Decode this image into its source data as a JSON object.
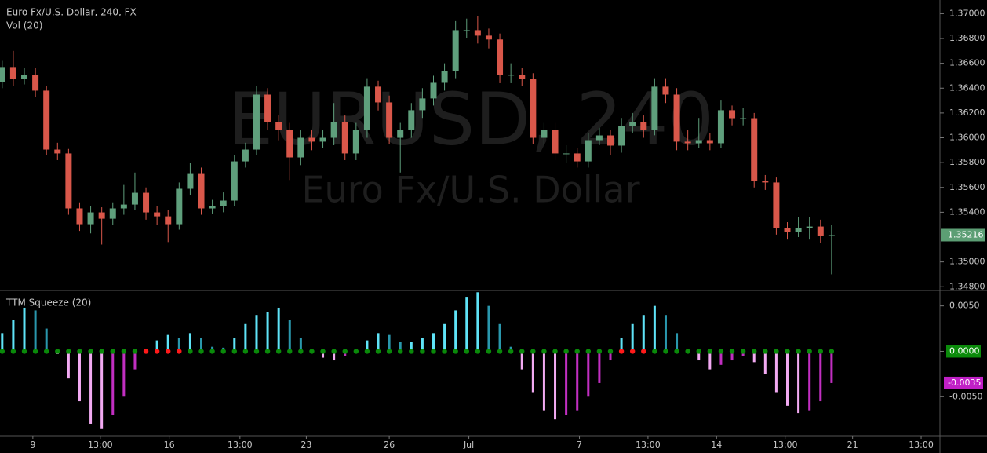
{
  "chart_data": [
    {
      "type": "candlestick",
      "title": "Euro Fx/U.S. Dollar, 240, FX",
      "subtitle": "Vol (20)",
      "watermark": "EURUSD, 240",
      "watermark_subtitle": "Euro Fx/U.S. Dollar",
      "up_color": "#5f9f7c",
      "down_color": "#d9574a",
      "last_color": "#5c9e74",
      "open": [
        1.3645,
        1.3657,
        1.36475,
        1.36507,
        1.3638,
        1.35905,
        1.35874,
        1.35431,
        1.35304,
        1.35399,
        1.35348,
        1.35431,
        1.35462,
        1.35557,
        1.35399,
        1.35367,
        1.35304,
        1.35589,
        1.35715,
        1.35431,
        1.3545,
        1.35494,
        1.3581,
        1.35905,
        1.36348,
        1.36127,
        1.36064,
        1.35842,
        1.36,
        1.35969,
        1.36,
        1.36127,
        1.35874,
        1.36064,
        1.36412,
        1.36285,
        1.36,
        1.36064,
        1.36222,
        1.36317,
        1.36443,
        1.36538,
        1.36867,
        1.36867,
        1.36823,
        1.36792,
        1.36507,
        1.36507,
        1.36475,
        1.36,
        1.36064,
        1.35874,
        1.35874,
        1.3581,
        1.35981,
        1.36019,
        1.35937,
        1.36095,
        1.36127,
        1.36064,
        1.36412,
        1.36348,
        1.35969,
        1.35956,
        1.35981,
        1.35956,
        1.36222,
        1.36158,
        1.36158,
        1.35652,
        1.3564,
        1.35272,
        1.35241,
        1.35272,
        1.35285,
        1.35209
      ],
      "high": [
        1.3662,
        1.367,
        1.3656,
        1.3656,
        1.3642,
        1.3596,
        1.3591,
        1.3548,
        1.3545,
        1.3544,
        1.3548,
        1.3562,
        1.3572,
        1.356,
        1.3545,
        1.3542,
        1.3564,
        1.358,
        1.3576,
        1.355,
        1.3556,
        1.3586,
        1.3596,
        1.3642,
        1.364,
        1.3618,
        1.3612,
        1.3606,
        1.3606,
        1.3606,
        1.3628,
        1.3618,
        1.3612,
        1.3648,
        1.3646,
        1.3634,
        1.3612,
        1.3628,
        1.364,
        1.365,
        1.366,
        1.3694,
        1.3696,
        1.3698,
        1.3688,
        1.3684,
        1.366,
        1.3656,
        1.3652,
        1.3612,
        1.3612,
        1.3594,
        1.3592,
        1.3604,
        1.3608,
        1.3606,
        1.3616,
        1.362,
        1.3618,
        1.3648,
        1.3648,
        1.364,
        1.3606,
        1.3616,
        1.3604,
        1.363,
        1.3626,
        1.3624,
        1.362,
        1.357,
        1.3568,
        1.3532,
        1.3536,
        1.3536,
        1.3534,
        1.353
      ],
      "low": [
        1.364,
        1.3642,
        1.3643,
        1.3633,
        1.3586,
        1.3582,
        1.3538,
        1.3525,
        1.3523,
        1.3514,
        1.353,
        1.3538,
        1.3542,
        1.3534,
        1.353,
        1.3516,
        1.3526,
        1.3554,
        1.3538,
        1.3539,
        1.354,
        1.3545,
        1.3576,
        1.3586,
        1.3606,
        1.3598,
        1.3566,
        1.3578,
        1.359,
        1.3592,
        1.3594,
        1.3582,
        1.3582,
        1.36,
        1.3622,
        1.3595,
        1.3572,
        1.36,
        1.3616,
        1.3626,
        1.3638,
        1.3648,
        1.368,
        1.3676,
        1.3672,
        1.3644,
        1.3644,
        1.3642,
        1.3595,
        1.3594,
        1.3582,
        1.358,
        1.3576,
        1.3576,
        1.3594,
        1.3586,
        1.3588,
        1.3604,
        1.36,
        1.3602,
        1.3628,
        1.359,
        1.359,
        1.3592,
        1.359,
        1.3592,
        1.361,
        1.361,
        1.356,
        1.3558,
        1.3522,
        1.3518,
        1.352,
        1.3518,
        1.3515,
        1.349
      ],
      "close": [
        1.3657,
        1.36475,
        1.36507,
        1.3638,
        1.35905,
        1.35874,
        1.35431,
        1.35304,
        1.35399,
        1.35348,
        1.35431,
        1.35462,
        1.35557,
        1.35399,
        1.35367,
        1.35304,
        1.35589,
        1.35715,
        1.35431,
        1.3545,
        1.35494,
        1.3581,
        1.35905,
        1.36348,
        1.36127,
        1.36064,
        1.35842,
        1.36,
        1.35969,
        1.36,
        1.36127,
        1.35874,
        1.36064,
        1.36412,
        1.36285,
        1.36,
        1.36064,
        1.36222,
        1.36317,
        1.36443,
        1.36538,
        1.36867,
        1.36867,
        1.36823,
        1.36792,
        1.36507,
        1.36507,
        1.36475,
        1.36,
        1.36064,
        1.35874,
        1.35874,
        1.3581,
        1.35981,
        1.36019,
        1.35937,
        1.36095,
        1.36127,
        1.36064,
        1.36412,
        1.36348,
        1.35969,
        1.35956,
        1.35981,
        1.35956,
        1.36222,
        1.36158,
        1.36158,
        1.35652,
        1.3564,
        1.35272,
        1.35241,
        1.35272,
        1.35285,
        1.35209,
        1.35216
      ],
      "ylim": [
        1.3477,
        1.3711
      ],
      "yticks": [
        {
          "value": 1.37,
          "label": "1.37000"
        },
        {
          "value": 1.368,
          "label": "1.36800"
        },
        {
          "value": 1.366,
          "label": "1.36600"
        },
        {
          "value": 1.364,
          "label": "1.36400"
        },
        {
          "value": 1.362,
          "label": "1.36200"
        },
        {
          "value": 1.36,
          "label": "1.36000"
        },
        {
          "value": 1.358,
          "label": "1.35800"
        },
        {
          "value": 1.356,
          "label": "1.35600"
        },
        {
          "value": 1.354,
          "label": "1.35400"
        },
        {
          "value": 1.35,
          "label": "1.35000"
        },
        {
          "value": 1.348,
          "label": "1.34800"
        }
      ],
      "xlim": [
        -0.2,
        84.8
      ],
      "xticks": [
        {
          "value": 2.77,
          "label": "9"
        },
        {
          "value": 8.87,
          "label": "13:00"
        },
        {
          "value": 15.1,
          "label": "16"
        },
        {
          "value": 21.5,
          "label": "13:00"
        },
        {
          "value": 27.5,
          "label": "23"
        },
        {
          "value": 35.0,
          "label": "26"
        },
        {
          "value": 42.2,
          "label": "Jul"
        },
        {
          "value": 52.2,
          "label": "7"
        },
        {
          "value": 58.4,
          "label": "13:00"
        },
        {
          "value": 64.6,
          "label": "14"
        },
        {
          "value": 70.8,
          "label": "13:00"
        },
        {
          "value": 76.9,
          "label": "21"
        },
        {
          "value": 83.1,
          "label": "13:00"
        }
      ]
    },
    {
      "type": "squeeze",
      "title": "TTM Squeeze (20)",
      "values": [
        0.002,
        0.0035,
        0.0048,
        0.0045,
        0.0025,
        -0.0003,
        -0.003,
        -0.0055,
        -0.008,
        -0.0085,
        -0.007,
        -0.005,
        -0.002,
        0.0003,
        0.0012,
        0.0018,
        0.0015,
        0.002,
        0.0015,
        0.0005,
        0.0004,
        0.0015,
        0.003,
        0.004,
        0.0043,
        0.0048,
        0.0035,
        0.0015,
        0.0002,
        -0.0007,
        -0.001,
        -0.0005,
        0.0002,
        0.0012,
        0.002,
        0.0018,
        0.001,
        0.001,
        0.0015,
        0.002,
        0.003,
        0.0045,
        0.006,
        0.0065,
        0.005,
        0.003,
        0.0005,
        -0.002,
        -0.0045,
        -0.0065,
        -0.0075,
        -0.007,
        -0.0065,
        -0.005,
        -0.0035,
        -0.001,
        0.0015,
        0.003,
        0.004,
        0.005,
        0.004,
        0.002,
        0.0003,
        -0.001,
        -0.002,
        -0.0015,
        -0.001,
        -0.0005,
        -0.0012,
        -0.0025,
        -0.0045,
        -0.006,
        -0.0068,
        -0.0065,
        -0.0055,
        -0.0035
      ],
      "squeeze": [
        0,
        0,
        0,
        0,
        0,
        0,
        0,
        0,
        0,
        0,
        0,
        0,
        0,
        1,
        1,
        1,
        1,
        0,
        0,
        0,
        0,
        0,
        0,
        0,
        0,
        0,
        0,
        0,
        0,
        0,
        0,
        0,
        0,
        0,
        0,
        0,
        0,
        0,
        0,
        0,
        0,
        0,
        0,
        0,
        0,
        0,
        0,
        0,
        0,
        0,
        0,
        0,
        0,
        0,
        0,
        0,
        1,
        1,
        1,
        0,
        0,
        0,
        0,
        0,
        0,
        0,
        0,
        0,
        0,
        0,
        0,
        0,
        0,
        0,
        0,
        0
      ],
      "colors": {
        "positive_rising": "#5fe3f7",
        "positive_falling": "#2a97ad",
        "negative_falling": "#f2aaf2",
        "negative_rising": "#c22fc2",
        "squeeze_on": "#ff1a1a",
        "squeeze_off": "#0a8a0a",
        "zero_badge": "#0b8b0b",
        "last_badge": "#c020c6"
      },
      "ylim": [
        -0.0093,
        0.0067
      ],
      "yticks": [
        {
          "value": 0.005,
          "label": "0.0050"
        },
        {
          "value": 0,
          "label": "0.0000"
        },
        {
          "value": -0.005,
          "label": "-0.0050"
        }
      ]
    }
  ]
}
